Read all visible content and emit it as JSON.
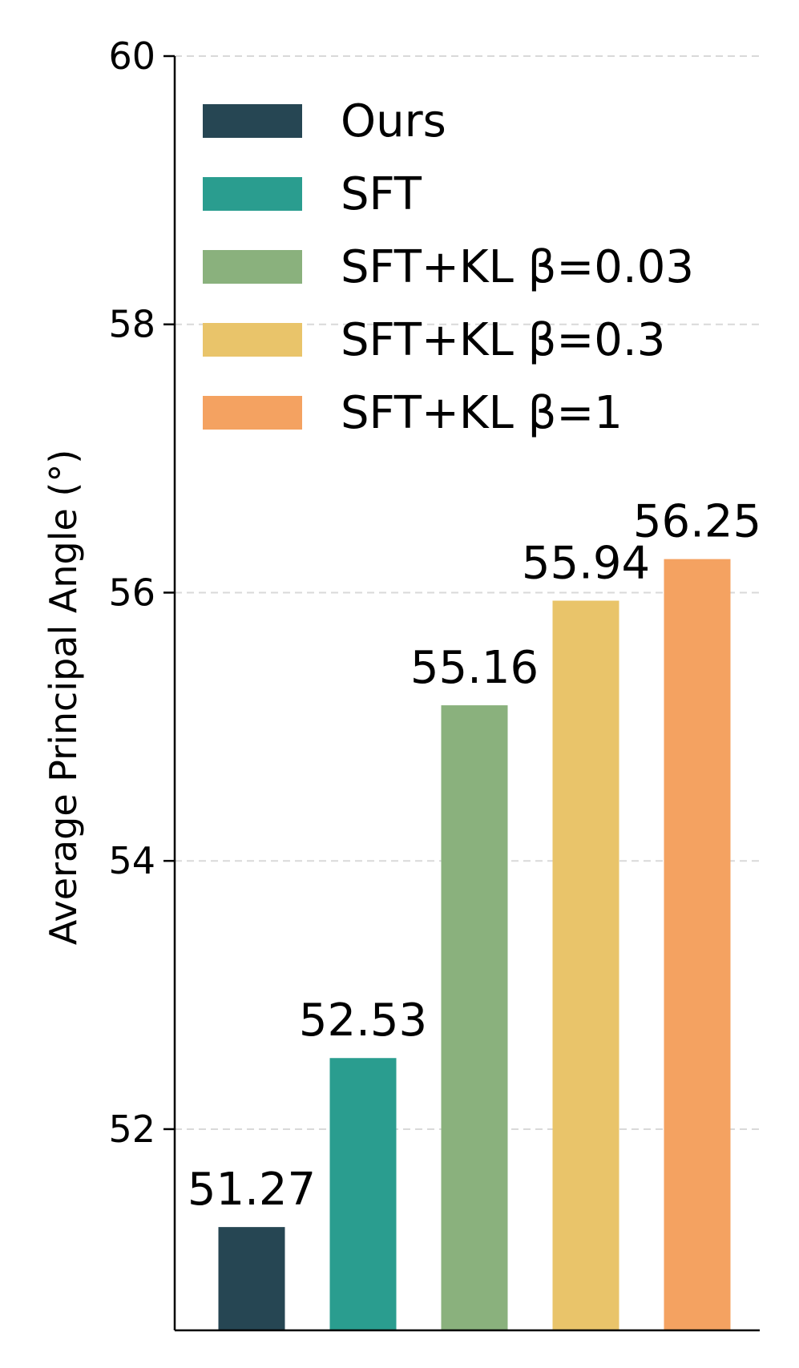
{
  "chart_data": {
    "type": "bar",
    "title": "",
    "xlabel": "",
    "ylabel": "Average Principal Angle (°)",
    "ylim": [
      50.5,
      60
    ],
    "yticks": [
      52,
      54,
      56,
      58,
      60
    ],
    "grid": "horizontal dashed",
    "legend_position": "top-left",
    "categories": [
      "Ours",
      "SFT",
      "SFT+KL β=0.03",
      "SFT+KL β=0.3",
      "SFT+KL β=1"
    ],
    "values": [
      51.27,
      52.53,
      55.16,
      55.94,
      56.25
    ],
    "value_labels": [
      "51.27",
      "52.53",
      "55.16",
      "55.94",
      "56.25"
    ],
    "colors": [
      "#264653",
      "#2a9d8f",
      "#8ab17d",
      "#e9c46a",
      "#f4a261"
    ]
  }
}
